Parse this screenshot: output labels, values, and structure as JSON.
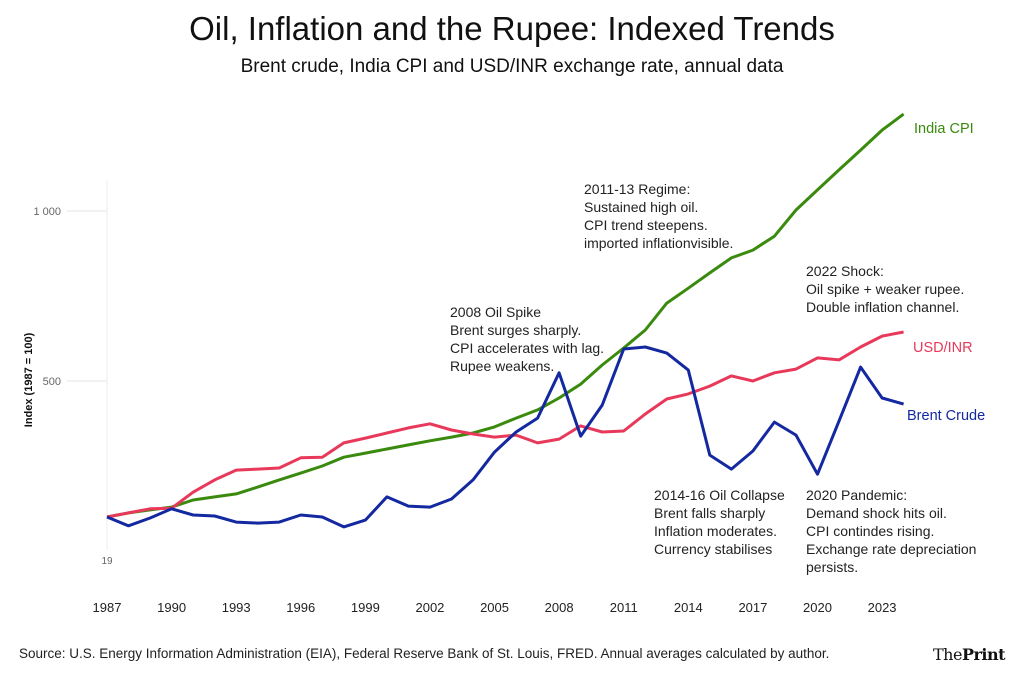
{
  "title": "Oil, Inflation and the Rupee: Indexed Trends",
  "subtitle": "Brent crude, India CPI and USD/INR exchange rate, annual data",
  "source": "Source: U.S. Energy Information Administration (EIA), Federal Reserve Bank of St. Louis, FRED. Annual averages calculated by author.",
  "logo": {
    "prefix": "The",
    "bold": "Print"
  },
  "chart_data": {
    "type": "line",
    "title": "Oil, Inflation and the Rupee: Indexed Trends",
    "ylabel": "Index (1987 = 100)",
    "xlabel": "",
    "ylim": [
      0,
      1300
    ],
    "xlim": [
      1987,
      2024
    ],
    "y_ticks": [
      {
        "value": 1000,
        "label": "1 000"
      },
      {
        "value": 500,
        "label": "500"
      }
    ],
    "y_clipped_label": "19",
    "x_ticks": [
      1987,
      1990,
      1993,
      1996,
      1999,
      2002,
      2005,
      2008,
      2011,
      2014,
      2017,
      2020,
      2023
    ],
    "grid": true,
    "legend": "direct-labels-right",
    "x": [
      1987,
      1988,
      1989,
      1990,
      1991,
      1992,
      1993,
      1994,
      1995,
      1996,
      1997,
      1998,
      1999,
      2000,
      2001,
      2002,
      2003,
      2004,
      2005,
      2006,
      2007,
      2008,
      2009,
      2010,
      2011,
      2012,
      2013,
      2014,
      2015,
      2016,
      2017,
      2018,
      2019,
      2020,
      2021,
      2022,
      2023,
      2024
    ],
    "series": [
      {
        "name": "India CPI",
        "color": "#3a8a0e",
        "values": [
          100,
          112,
          121,
          129,
          150,
          159,
          168,
          188,
          209,
          229,
          250,
          276,
          288,
          300,
          312,
          324,
          335,
          347,
          365,
          391,
          415,
          450,
          491,
          547,
          597,
          650,
          729,
          773,
          818,
          862,
          885,
          926,
          1003,
          1062,
          1121,
          1179,
          1238,
          1285
        ]
      },
      {
        "name": "USD/INR",
        "color": "#e8395a",
        "values": [
          100,
          112,
          124,
          126,
          173,
          209,
          238,
          241,
          244,
          274,
          276,
          318,
          332,
          347,
          362,
          374,
          356,
          344,
          335,
          341,
          318,
          329,
          368,
          350,
          353,
          403,
          447,
          462,
          485,
          515,
          500,
          524,
          535,
          568,
          562,
          600,
          632,
          644
        ]
      },
      {
        "name": "Brent Crude",
        "color": "#1428a0",
        "values": [
          100,
          74,
          97,
          124,
          106,
          103,
          85,
          82,
          85,
          106,
          100,
          71,
          91,
          159,
          132,
          129,
          153,
          209,
          291,
          350,
          391,
          524,
          338,
          429,
          594,
          600,
          582,
          532,
          282,
          241,
          294,
          379,
          341,
          226,
          382,
          541,
          450,
          432
        ]
      }
    ],
    "annotations": [
      {
        "lines": [
          "2008 Oil Spike",
          "Brent surges sharply.",
          "CPI accelerates with lag.",
          "Rupee weakens."
        ]
      },
      {
        "lines": [
          "2011-13 Regime:",
          "Sustained high oil.",
          "CPI trend steepens.",
          "imported inflationvisible."
        ]
      },
      {
        "lines": [
          "2014-16 Oil Collapse",
          "Brent falls sharply",
          "Inflation moderates.",
          "Currency stabilises"
        ]
      },
      {
        "lines": [
          "2020 Pandemic:",
          "Demand shock hits oil.",
          "CPI contindes rising.",
          "Exchange rate depreciation",
          "persists."
        ]
      },
      {
        "lines": [
          "2022 Shock:",
          "Oil spike + weaker rupee.",
          "Double inflation channel."
        ]
      }
    ]
  }
}
